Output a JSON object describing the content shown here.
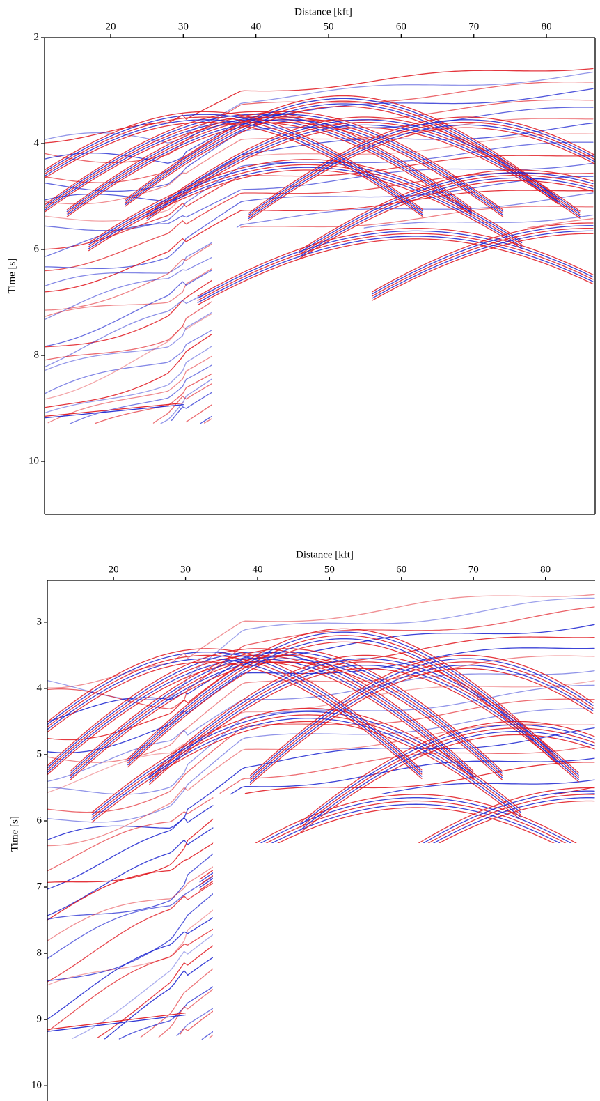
{
  "chart_data": [
    {
      "type": "image",
      "xlabel": "Distance [kft]",
      "ylabel": "Time [s]",
      "xlim": [
        10.9,
        86.7
      ],
      "ylim": [
        2,
        11
      ],
      "xticks": [
        20,
        30,
        40,
        50,
        60,
        70,
        80
      ],
      "yticks": [
        2,
        4,
        6,
        8,
        10
      ],
      "inverted_y": true,
      "bottom_frame": true
    },
    {
      "type": "image",
      "xlabel": "Distance [kft]",
      "ylabel": "Time [s]",
      "xlim": [
        10.8,
        86.9
      ],
      "ylim": [
        2.37,
        10.23
      ],
      "xticks": [
        20,
        30,
        40,
        50,
        60,
        70,
        80
      ],
      "yticks": [
        3,
        4,
        5,
        6,
        7,
        8,
        9,
        10
      ],
      "inverted_y": true,
      "bottom_frame": false
    }
  ]
}
